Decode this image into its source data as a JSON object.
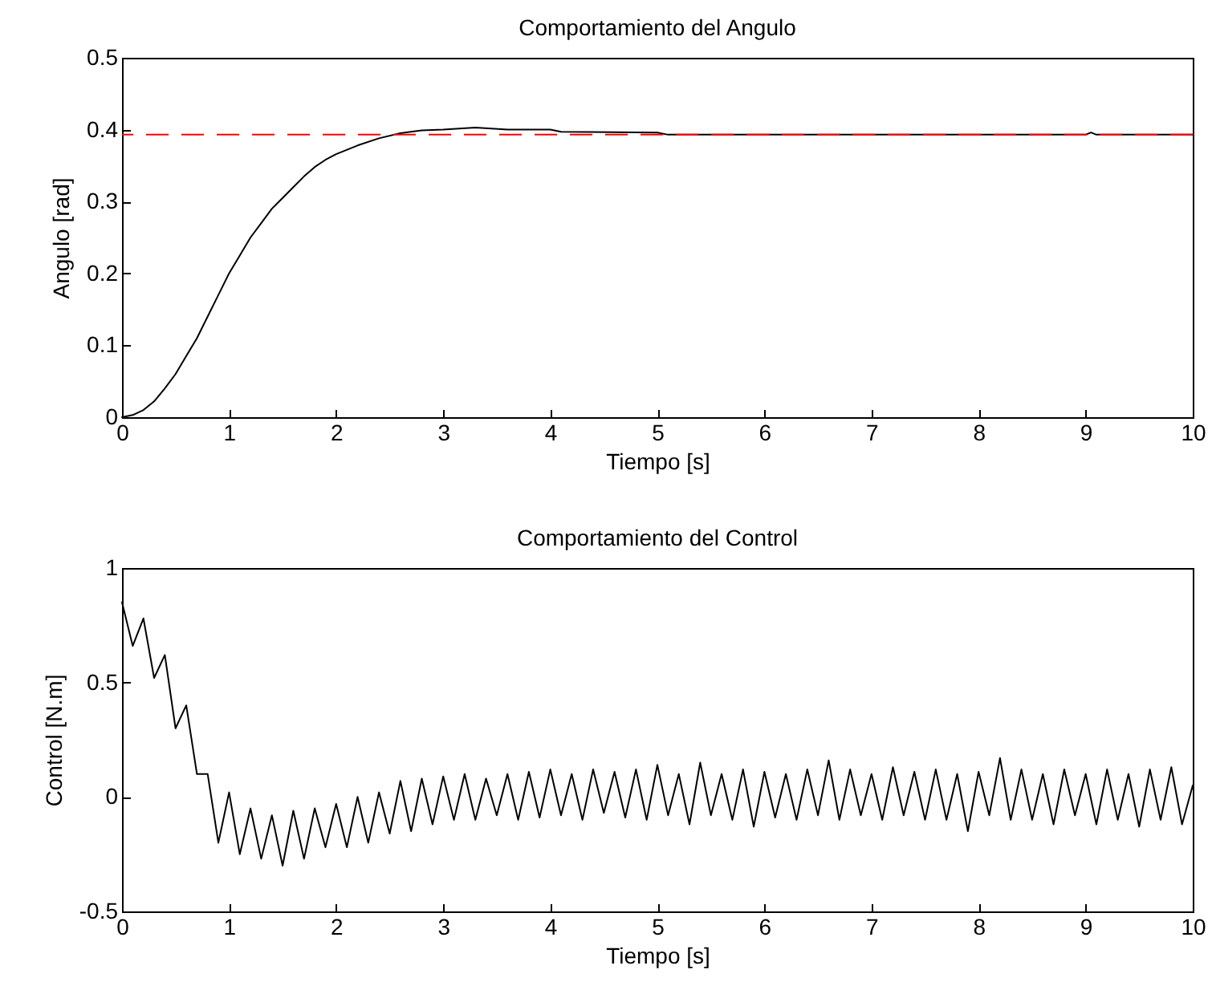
{
  "chart_data": [
    {
      "type": "line",
      "title": "Comportamiento del Angulo",
      "xlabel": "Tiempo [s]",
      "ylabel": "Angulo [rad]",
      "xlim": [
        0,
        10
      ],
      "xticks": [
        0,
        1,
        2,
        3,
        4,
        5,
        6,
        7,
        8,
        9,
        10
      ],
      "ylim": [
        0,
        0.5
      ],
      "yticks": [
        0,
        0.1,
        0.2,
        0.3,
        0.4,
        0.5
      ],
      "line_style": "solid",
      "marker": "none",
      "x": [
        0,
        0.1,
        0.2,
        0.3,
        0.4,
        0.5,
        0.6,
        0.7,
        0.8,
        0.9,
        1.0,
        1.1,
        1.2,
        1.3,
        1.4,
        1.5,
        1.6,
        1.7,
        1.8,
        1.9,
        2.0,
        2.2,
        2.4,
        2.6,
        2.8,
        3.0,
        3.3,
        3.6,
        4.0,
        4.1,
        5.0,
        5.1,
        9.0,
        9.05,
        9.1,
        10
      ],
      "series": [
        {
          "color": "#000000",
          "values": [
            0,
            0.003,
            0.01,
            0.022,
            0.04,
            0.06,
            0.085,
            0.11,
            0.14,
            0.17,
            0.2,
            0.225,
            0.25,
            0.27,
            0.29,
            0.305,
            0.32,
            0.335,
            0.348,
            0.358,
            0.366,
            0.378,
            0.388,
            0.395,
            0.399,
            0.4,
            0.403,
            0.4,
            0.4,
            0.397,
            0.396,
            0.393,
            0.393,
            0.396,
            0.393,
            0.393
          ]
        }
      ],
      "ref_lines": [
        {
          "axis": "y",
          "value": 0.393,
          "color": "#ff0000",
          "line_style": "dashed"
        }
      ]
    },
    {
      "type": "line",
      "title": "Comportamiento del Control",
      "xlabel": "Tiempo [s]",
      "ylabel": "Control [N.m]",
      "xlim": [
        0,
        10
      ],
      "xticks": [
        0,
        1,
        2,
        3,
        4,
        5,
        6,
        7,
        8,
        9,
        10
      ],
      "ylim": [
        -0.5,
        1
      ],
      "yticks": [
        -0.5,
        0,
        0.5,
        1
      ],
      "line_style": "solid",
      "marker": "none",
      "x": [
        0,
        0.1,
        0.2,
        0.3,
        0.4,
        0.5,
        0.6,
        0.7,
        0.8,
        0.9,
        1.0,
        1.1,
        1.2,
        1.3,
        1.4,
        1.5,
        1.6,
        1.7,
        1.8,
        1.9,
        2.0,
        2.1,
        2.2,
        2.3,
        2.4,
        2.5,
        2.6,
        2.7,
        2.8,
        2.9,
        3.0,
        3.1,
        3.2,
        3.3,
        3.4,
        3.5,
        3.6,
        3.7,
        3.8,
        3.9,
        4.0,
        4.1,
        4.2,
        4.3,
        4.4,
        4.5,
        4.6,
        4.7,
        4.8,
        4.9,
        5.0,
        5.1,
        5.2,
        5.3,
        5.4,
        5.5,
        5.6,
        5.7,
        5.8,
        5.9,
        6.0,
        6.1,
        6.2,
        6.3,
        6.4,
        6.5,
        6.6,
        6.7,
        6.8,
        6.9,
        7.0,
        7.1,
        7.2,
        7.3,
        7.4,
        7.5,
        7.6,
        7.7,
        7.8,
        7.9,
        8.0,
        8.1,
        8.2,
        8.3,
        8.4,
        8.5,
        8.6,
        8.7,
        8.8,
        8.9,
        9.0,
        9.1,
        9.2,
        9.3,
        9.4,
        9.5,
        9.6,
        9.7,
        9.8,
        9.9,
        10.0
      ],
      "series": [
        {
          "color": "#000000",
          "values": [
            0.85,
            0.66,
            0.78,
            0.52,
            0.62,
            0.3,
            0.4,
            0.1,
            0.1,
            -0.2,
            0.02,
            -0.25,
            -0.05,
            -0.27,
            -0.08,
            -0.3,
            -0.06,
            -0.27,
            -0.05,
            -0.22,
            -0.03,
            -0.22,
            0.0,
            -0.2,
            0.02,
            -0.16,
            0.07,
            -0.15,
            0.08,
            -0.12,
            0.09,
            -0.1,
            0.1,
            -0.1,
            0.08,
            -0.08,
            0.1,
            -0.1,
            0.11,
            -0.09,
            0.12,
            -0.08,
            0.1,
            -0.1,
            0.12,
            -0.07,
            0.11,
            -0.09,
            0.12,
            -0.1,
            0.14,
            -0.08,
            0.1,
            -0.12,
            0.15,
            -0.08,
            0.1,
            -0.1,
            0.12,
            -0.13,
            0.11,
            -0.09,
            0.1,
            -0.1,
            0.12,
            -0.08,
            0.16,
            -0.1,
            0.12,
            -0.08,
            0.1,
            -0.1,
            0.13,
            -0.08,
            0.11,
            -0.1,
            0.12,
            -0.1,
            0.1,
            -0.15,
            0.11,
            -0.08,
            0.17,
            -0.1,
            0.12,
            -0.1,
            0.1,
            -0.12,
            0.12,
            -0.08,
            0.1,
            -0.12,
            0.12,
            -0.1,
            0.1,
            -0.13,
            0.12,
            -0.1,
            0.13,
            -0.12,
            0.05
          ]
        }
      ]
    }
  ]
}
